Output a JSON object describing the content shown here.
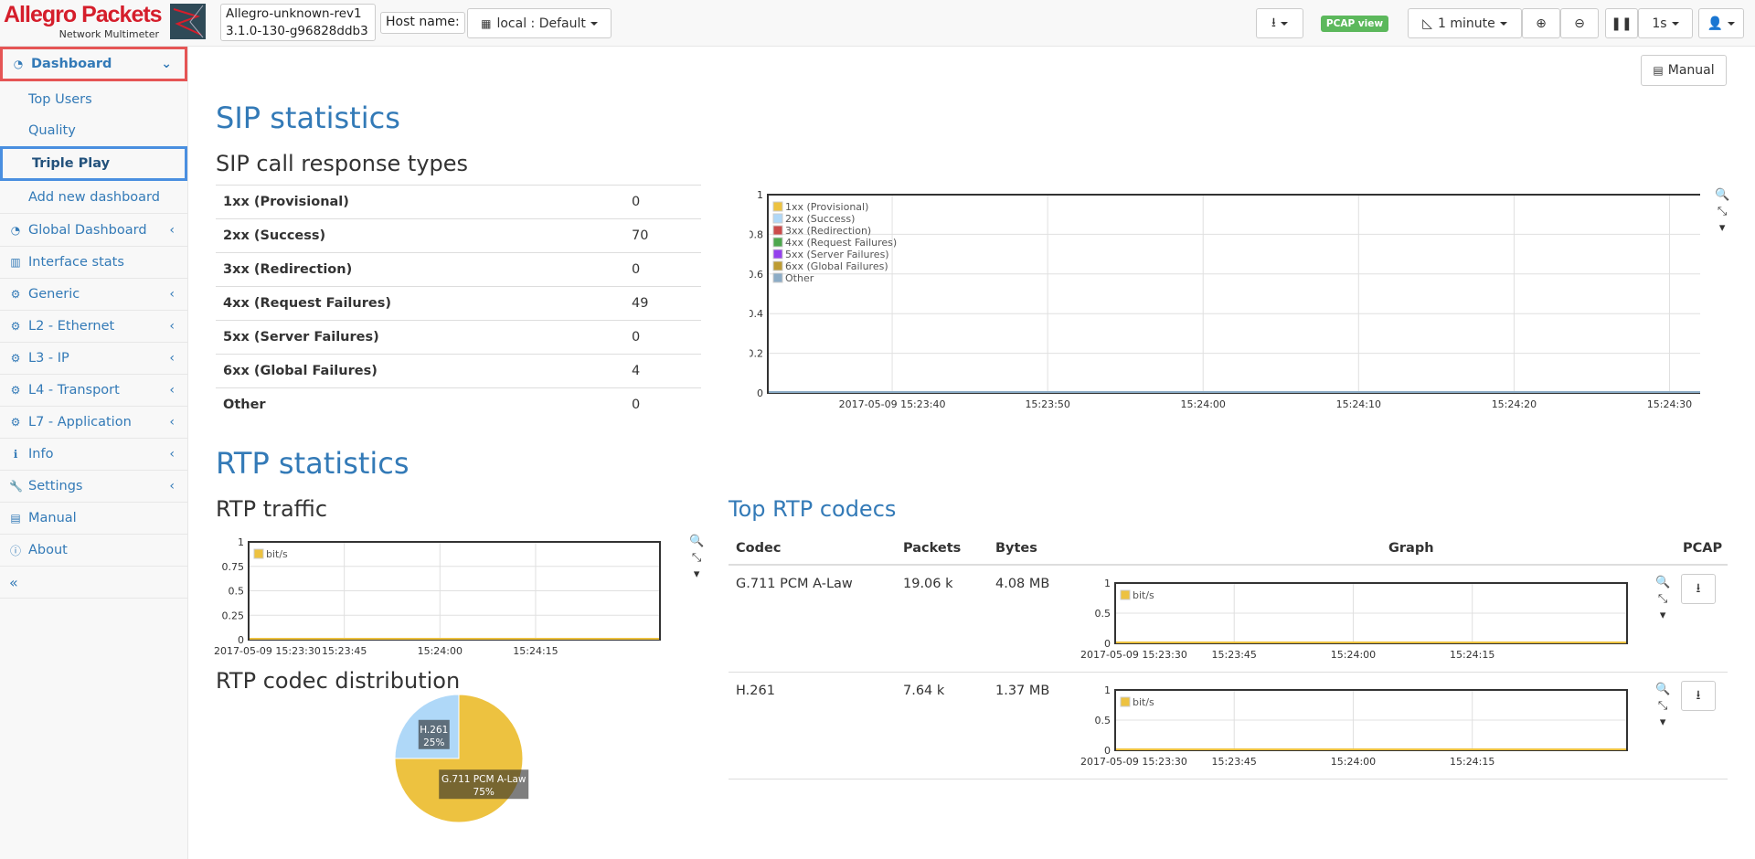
{
  "header": {
    "logo_text": "Allegro Packets",
    "logo_sub": "Network Multimeter",
    "host_line1": "Allegro-unknown-rev1",
    "host_line2": "3.1.0-130-g96828ddb3",
    "host_label": "Host name:",
    "host_select": "local : Default",
    "pcap_view": "PCAP view",
    "interval": "1 minute",
    "refresh": "1s"
  },
  "sidebar": {
    "dashboard": "Dashboard",
    "sub": [
      "Top Users",
      "Quality",
      "Triple Play",
      "Add new dashboard"
    ],
    "items": [
      "Global Dashboard",
      "Interface stats",
      "Generic",
      "L2 - Ethernet",
      "L3 - IP",
      "L4 - Transport",
      "L7 - Application",
      "Info",
      "Settings",
      "Manual",
      "About"
    ],
    "collapse": "«"
  },
  "main": {
    "manual_btn": "Manual",
    "sip_title": "SIP statistics",
    "sip_sub": "SIP call response types",
    "sip_rows": [
      {
        "k": "1xx (Provisional)",
        "v": "0"
      },
      {
        "k": "2xx (Success)",
        "v": "70"
      },
      {
        "k": "3xx (Redirection)",
        "v": "0"
      },
      {
        "k": "4xx (Request Failures)",
        "v": "49"
      },
      {
        "k": "5xx (Server Failures)",
        "v": "0"
      },
      {
        "k": "6xx (Global Failures)",
        "v": "4"
      },
      {
        "k": "Other",
        "v": "0"
      }
    ],
    "rtp_title": "RTP statistics",
    "rtp_traffic": "RTP traffic",
    "rtp_dist": "RTP codec distribution",
    "top_codecs": "Top RTP codecs",
    "codec_headers": [
      "Codec",
      "Packets",
      "Bytes",
      "Graph",
      "PCAP"
    ],
    "codec_rows": [
      {
        "codec": "G.711 PCM A-Law",
        "packets": "19.06 k",
        "bytes": "4.08 MB"
      },
      {
        "codec": "H.261",
        "packets": "7.64 k",
        "bytes": "1.37 MB"
      }
    ]
  },
  "chart_data": [
    {
      "type": "line",
      "x": [
        "2017-05-09 15:23:40",
        "15:23:50",
        "15:24:00",
        "15:24:10",
        "15:24:20",
        "15:24:30"
      ],
      "ylim": [
        0,
        1
      ],
      "yticks": [
        "0",
        "0.2",
        "0.4",
        "0.6",
        "0.8",
        "1"
      ],
      "legend": [
        "1xx (Provisional)",
        "2xx (Success)",
        "3xx (Redirection)",
        "4xx (Request Failures)",
        "5xx (Server Failures)",
        "6xx (Global Failures)",
        "Other"
      ],
      "colors": [
        "#edc240",
        "#afd8f8",
        "#cb4b4b",
        "#4da74d",
        "#9440ed",
        "#bd9b33",
        "#8cacc6"
      ],
      "grid": true,
      "legend_position": "top-left"
    },
    {
      "type": "line",
      "x": [
        "2017-05-09 15:23:30",
        "15:23:45",
        "15:24:00",
        "15:24:15"
      ],
      "ylim": [
        0,
        1
      ],
      "yticks": [
        "0",
        "0.25",
        "0.5",
        "0.75",
        "1"
      ],
      "legend": [
        "bit/s"
      ],
      "colors": [
        "#edc240"
      ],
      "grid": true,
      "legend_position": "top-left"
    },
    {
      "type": "pie",
      "slices": [
        {
          "label": "G.711 PCM A-Law",
          "pct": "75%",
          "value": 75,
          "color": "#edc240"
        },
        {
          "label": "H.261",
          "pct": "25%",
          "value": 25,
          "color": "#afd8f8"
        }
      ]
    },
    {
      "type": "line",
      "x": [
        "2017-05-09 15:23:30",
        "15:23:45",
        "15:24:00",
        "15:24:15"
      ],
      "ylim": [
        0,
        1
      ],
      "yticks": [
        "0",
        "0.5",
        "1"
      ],
      "legend": [
        "bit/s"
      ],
      "colors": [
        "#edc240"
      ],
      "grid": true,
      "legend_position": "top-left"
    },
    {
      "type": "line",
      "x": [
        "2017-05-09 15:23:30",
        "15:23:45",
        "15:24:00",
        "15:24:15"
      ],
      "ylim": [
        0,
        1
      ],
      "yticks": [
        "0",
        "0.5",
        "1"
      ],
      "legend": [
        "bit/s"
      ],
      "colors": [
        "#edc240"
      ],
      "grid": true,
      "legend_position": "top-left"
    }
  ]
}
